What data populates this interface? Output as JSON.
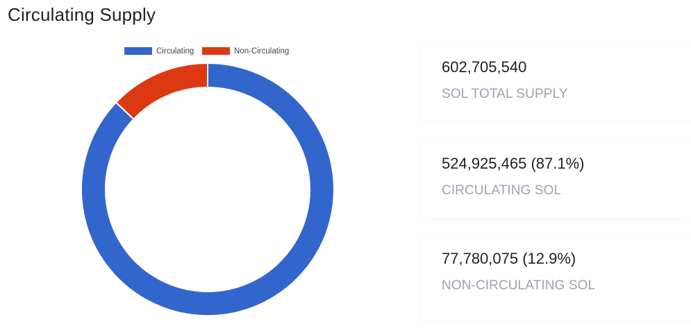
{
  "page": {
    "title": "Circulating Supply"
  },
  "colors": {
    "circulating": "#3366CC",
    "non_circulating": "#DC3912"
  },
  "chart_data": {
    "type": "pie",
    "donut": true,
    "title": "",
    "legend_position": "top",
    "categories": [
      "Circulating",
      "Non-Circulating"
    ],
    "values": [
      524925465,
      77780075
    ],
    "colors": [
      "#3366CC",
      "#DC3912"
    ]
  },
  "stats": [
    {
      "value": "602,705,540",
      "label": "SOL TOTAL SUPPLY"
    },
    {
      "value": "524,925,465 (87.1%)",
      "label": "CIRCULATING SOL"
    },
    {
      "value": "77,780,075 (12.9%)",
      "label": "NON-CIRCULATING SOL"
    }
  ]
}
